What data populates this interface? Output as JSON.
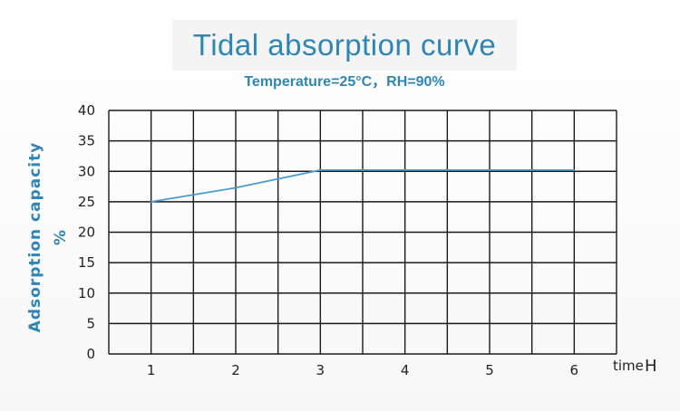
{
  "chart_data": {
    "type": "line",
    "title": "Tidal absorption curve",
    "subtitle": "Temperature=25°C，RH=90%",
    "ylabel_line1": "Adsorption  capacity",
    "ylabel_line2": "%",
    "xlabel": "time",
    "xlabel_unit": "H",
    "x_ticks": [
      1,
      2,
      3,
      4,
      5,
      6
    ],
    "y_ticks": [
      0,
      5,
      10,
      15,
      20,
      25,
      30,
      35,
      40
    ],
    "xlim": [
      0.5,
      6.5
    ],
    "ylim": [
      0,
      40
    ],
    "grid": true,
    "line_color": "#4a9cc8",
    "series": [
      {
        "x": [
          1,
          2,
          3,
          4,
          5,
          6
        ],
        "values": [
          25,
          27.3,
          30.2,
          30.2,
          30.2,
          30.2
        ]
      }
    ]
  }
}
